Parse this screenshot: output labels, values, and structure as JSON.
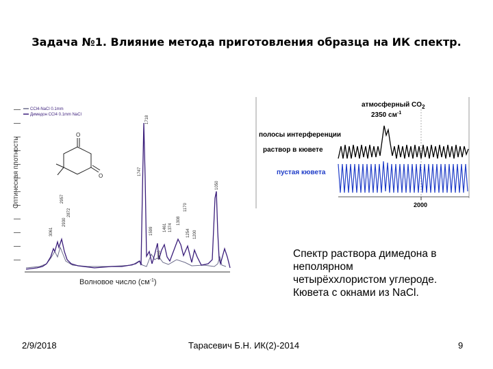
{
  "slide": {
    "title": "Задача №1. Влияние метода приготовления образца на ИК спектр.",
    "description": [
      "Спектр раствора димедона в",
      "неполярном",
      "четырёххлористом углероде.",
      "Кювета с окнами из NaCl."
    ],
    "footer": {
      "date": "2/9/2018",
      "author": "Тарасевич Б.Н. ИК(2)-2014",
      "page": "9"
    }
  },
  "left_spectrum": {
    "ylabel": "Оптическая плотность",
    "xlabel": "Волновое число (см",
    "xlabel_sup": "-1",
    "xlabel_end": ")",
    "legend": [
      "CCl4-NaCl 0.1mm",
      "Димедон CCl4 0.1mm NaCl"
    ],
    "peaks": [
      "1718",
      "1747",
      "2957",
      "2872",
      "2930",
      "3061",
      "1599",
      "1461",
      "1374",
      "1308",
      "1254",
      "1200",
      "1170",
      "1410",
      "1050"
    ],
    "colors": {
      "sample": "#3a1d7a",
      "reference": "#6b6b8a"
    }
  },
  "right_spectrum": {
    "annotations": {
      "co2_line1": "атмосферный CO",
      "co2_sub": "2",
      "co2_line2": "2350 см",
      "co2_sup": "-1",
      "interference": "полосы интерференции",
      "solution": "раствор в кювете",
      "empty_cell": "пустая кювета",
      "x_tick": "2000"
    },
    "colors": {
      "solution": "#000000",
      "empty_cell": "#1e3cc8",
      "label_blue": "#1e3cc8"
    }
  }
}
